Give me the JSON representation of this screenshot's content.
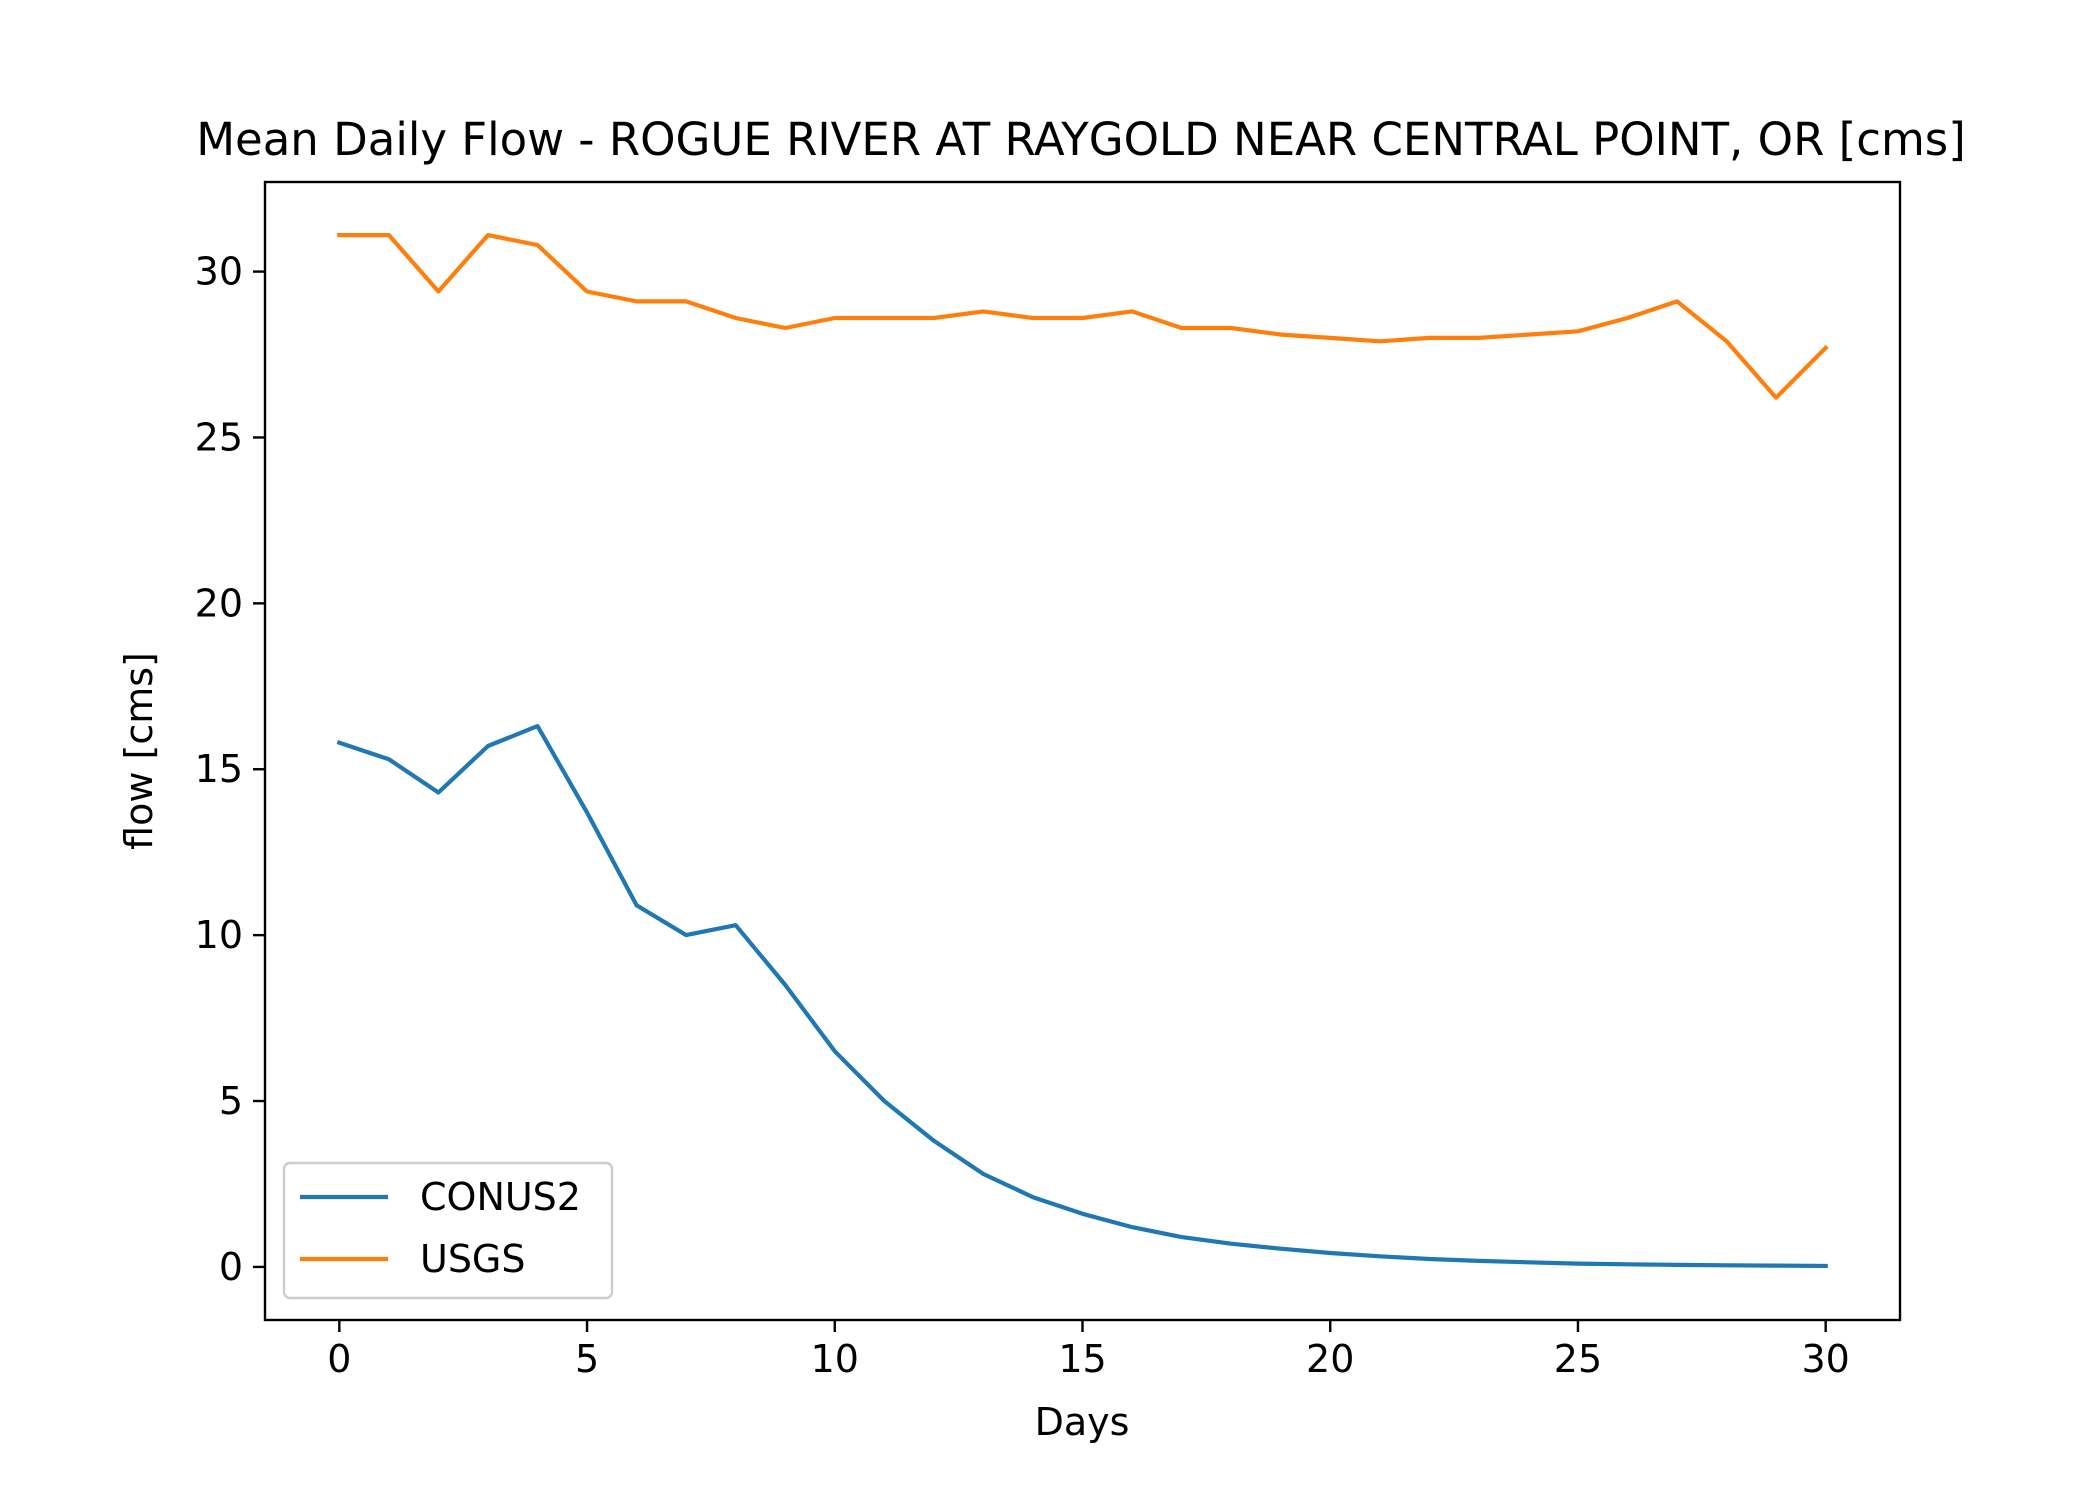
{
  "chart_data": {
    "type": "line",
    "title": "Mean Daily Flow - ROGUE RIVER AT RAYGOLD NEAR CENTRAL POINT, OR [cms]",
    "xlabel": "Days",
    "ylabel": "flow [cms]",
    "xlim": [
      -1.5,
      31.5
    ],
    "ylim": [
      -1.6,
      32.7
    ],
    "xticks": [
      0,
      5,
      10,
      15,
      20,
      25,
      30
    ],
    "yticks": [
      0,
      5,
      10,
      15,
      20,
      25,
      30
    ],
    "xtick_labels": [
      "0",
      "5",
      "10",
      "15",
      "20",
      "25",
      "30"
    ],
    "ytick_labels": [
      "0",
      "5",
      "10",
      "15",
      "20",
      "25",
      "30"
    ],
    "grid": false,
    "legend_position": "lower-left",
    "x": [
      0,
      1,
      2,
      3,
      4,
      5,
      6,
      7,
      8,
      9,
      10,
      11,
      12,
      13,
      14,
      15,
      16,
      17,
      18,
      19,
      20,
      21,
      22,
      23,
      24,
      25,
      26,
      27,
      28,
      29,
      30
    ],
    "series": [
      {
        "name": "CONUS2",
        "color": "#1f77b4",
        "values": [
          15.8,
          15.3,
          14.3,
          15.7,
          16.3,
          13.7,
          10.9,
          10.0,
          10.3,
          8.5,
          6.5,
          5.0,
          3.8,
          2.8,
          2.1,
          1.6,
          1.2,
          0.9,
          0.7,
          0.55,
          0.42,
          0.32,
          0.24,
          0.18,
          0.14,
          0.1,
          0.08,
          0.06,
          0.05,
          0.04,
          0.03
        ]
      },
      {
        "name": "USGS",
        "color": "#ff7f0e",
        "values": [
          31.1,
          31.1,
          29.4,
          31.1,
          30.8,
          29.4,
          29.1,
          29.1,
          28.6,
          28.3,
          28.6,
          28.6,
          28.6,
          28.8,
          28.6,
          28.6,
          28.8,
          28.3,
          28.3,
          28.1,
          28.0,
          27.9,
          28.0,
          28.0,
          28.1,
          28.2,
          28.6,
          29.1,
          27.9,
          26.2,
          27.7
        ]
      }
    ]
  }
}
